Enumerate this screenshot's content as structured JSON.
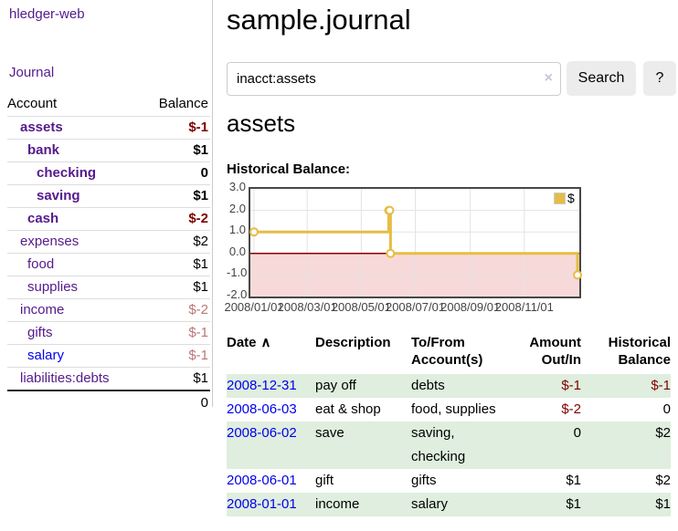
{
  "colors": {
    "link_visited": "#551a8b",
    "link_new": "#0000ee",
    "negative_strong": "#800000",
    "negative_dim": "#bc7676",
    "series_gold": "#e5bd45",
    "negative_region": "#f8d9d9",
    "zero_line": "#8b0000",
    "row_green": "#dfeede",
    "button_bg": "#ececec"
  },
  "sidebar": {
    "brand": "hledger-web",
    "journal_label": "Journal",
    "columns": {
      "account": "Account",
      "balance": "Balance"
    },
    "accounts": [
      {
        "name": "assets",
        "depth": 0,
        "bold": true,
        "balance": "$-1",
        "neg": "strong"
      },
      {
        "name": "bank",
        "depth": 1,
        "bold": true,
        "balance": "$1",
        "neg": null
      },
      {
        "name": "checking",
        "depth": 2,
        "bold": true,
        "balance": "0",
        "neg": null
      },
      {
        "name": "saving",
        "depth": 2,
        "bold": true,
        "balance": "$1",
        "neg": null
      },
      {
        "name": "cash",
        "depth": 1,
        "bold": true,
        "balance": "$-2",
        "neg": "strong"
      },
      {
        "name": "expenses",
        "depth": 0,
        "bold": false,
        "balance": "$2",
        "neg": null
      },
      {
        "name": "food",
        "depth": 1,
        "bold": false,
        "balance": "$1",
        "neg": null
      },
      {
        "name": "supplies",
        "depth": 1,
        "bold": false,
        "balance": "$1",
        "neg": null
      },
      {
        "name": "income",
        "depth": 0,
        "bold": false,
        "balance": "$-2",
        "neg": "dim"
      },
      {
        "name": "gifts",
        "depth": 1,
        "bold": false,
        "balance": "$-1",
        "neg": "dim"
      },
      {
        "name": "salary",
        "depth": 1,
        "bold": false,
        "balance": "$-1",
        "neg": "dim",
        "link": "new"
      },
      {
        "name": "liabilities:debts",
        "depth": 0,
        "bold": false,
        "balance": "$1",
        "neg": null
      }
    ],
    "total": "0"
  },
  "header": {
    "title": "sample.journal"
  },
  "search": {
    "value": "inacct:assets",
    "clear_icon": "×",
    "button_label": "Search",
    "help_label": "?"
  },
  "account": {
    "heading": "assets",
    "chart_label": "Historical Balance:"
  },
  "chart_data": {
    "type": "line",
    "steps": true,
    "title": "Historical Balance:",
    "legend_position": "top-right",
    "grid": true,
    "ylim": [
      -2,
      3
    ],
    "yticks": [
      "3.0",
      "2.0",
      "1.0",
      "0.0",
      "-1.0",
      "-2.0"
    ],
    "xticks": [
      "2008/01/01",
      "2008/03/01",
      "2008/05/01",
      "2008/07/01",
      "2008/09/01",
      "2008/11/01"
    ],
    "x_range": [
      "2008-01-01",
      "2009-01-01"
    ],
    "series": [
      {
        "name": "$",
        "color": "#e5bd45",
        "points": [
          {
            "x": "2008-01-01",
            "y": 1
          },
          {
            "x": "2008-06-01",
            "y": 2
          },
          {
            "x": "2008-06-02",
            "y": 2
          },
          {
            "x": "2008-06-03",
            "y": 0
          },
          {
            "x": "2008-12-31",
            "y": -1
          }
        ]
      }
    ]
  },
  "register": {
    "columns": {
      "date": "Date",
      "description": "Description",
      "accounts": "To/From\nAccount(s)",
      "amount": "Amount\nOut/In",
      "balance": "Historical\nBalance"
    },
    "sort_icon": "∧",
    "rows": [
      {
        "date": "2008-12-31",
        "description": "pay off",
        "accounts": "debts",
        "amount": "$-1",
        "amount_negative": true,
        "balance": "$-1",
        "balance_negative": true
      },
      {
        "date": "2008-06-03",
        "description": "eat & shop",
        "accounts": "food, supplies",
        "amount": "$-2",
        "amount_negative": true,
        "balance": "0",
        "balance_negative": false
      },
      {
        "date": "2008-06-02",
        "description": "save",
        "accounts": "saving, checking",
        "amount": "0",
        "amount_negative": false,
        "balance": "$2",
        "balance_negative": false
      },
      {
        "date": "2008-06-01",
        "description": "gift",
        "accounts": "gifts",
        "amount": "$1",
        "amount_negative": false,
        "balance": "$2",
        "balance_negative": false
      },
      {
        "date": "2008-01-01",
        "description": "income",
        "accounts": "salary",
        "amount": "$1",
        "amount_negative": false,
        "balance": "$1",
        "balance_negative": false
      }
    ]
  }
}
